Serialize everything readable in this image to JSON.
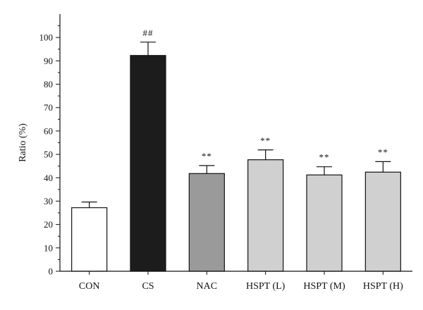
{
  "chart_data": {
    "type": "bar",
    "title": "",
    "xlabel": "",
    "ylabel": "Ratio (%)",
    "ylim": [
      0,
      110
    ],
    "yticks": [
      0,
      10,
      20,
      30,
      40,
      50,
      60,
      70,
      80,
      90,
      100
    ],
    "grid": false,
    "categories": [
      "CON",
      "CS",
      "NAC",
      "HSPT (L)",
      "HSPT (M)",
      "HSPT (H)"
    ],
    "values": [
      27.2,
      92.3,
      41.8,
      47.7,
      41.2,
      42.4
    ],
    "errors": [
      2.4,
      5.7,
      3.4,
      4.2,
      3.5,
      4.5
    ],
    "annotations": [
      "",
      "##",
      "**",
      "**",
      "**",
      "**"
    ],
    "colors": [
      "#ffffff",
      "#1c1c1c",
      "#9a9a9a",
      "#d0d0d0",
      "#d0d0d0",
      "#d0d0d0"
    ]
  }
}
